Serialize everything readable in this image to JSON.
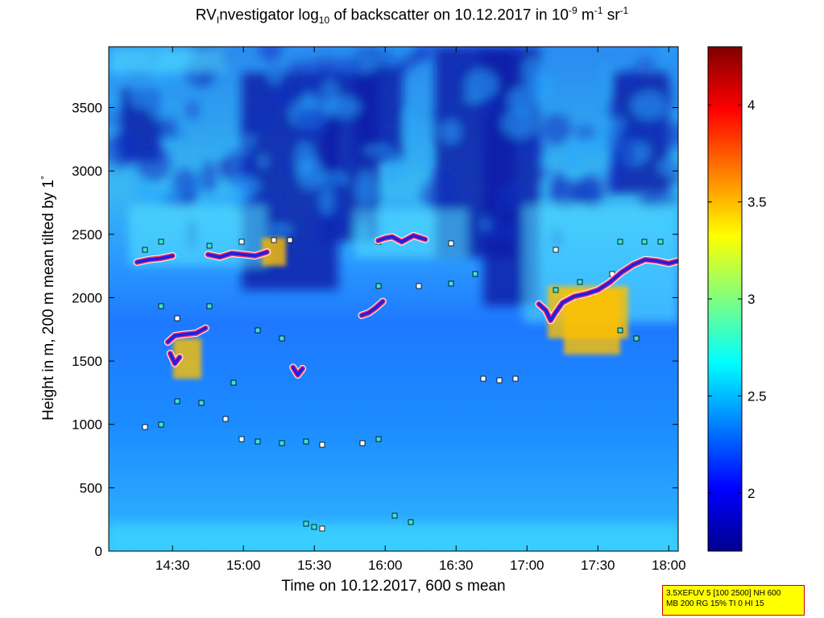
{
  "title": {
    "part1": "RV",
    "part1_sub": "I",
    "part2": "nvestigator log",
    "part2_sub": "10",
    "part3": " of backscatter on 10.12.2017 in 10",
    "unit_exp1": "-9",
    "unit_mid": " m",
    "unit_exp2": "-1",
    "unit_sr": " sr",
    "unit_exp3": "-1"
  },
  "ylabel": {
    "text": "Height in m, 200 m mean tilted by 1",
    "deg": "°"
  },
  "xlabel": "Time on 10.12.2017, 600 s mean",
  "info": {
    "line1": "3.5XEFUV 5 [100 2500] NH 600",
    "line2": "MB 200 RG 15% TI 0 HI 15"
  },
  "chart_data": {
    "type": "heatmap",
    "title": "RVInvestigator log10 of backscatter on 10.12.2017 in 10^-9 m^-1 sr^-1",
    "xlabel": "Time on 10.12.2017, 600 s mean",
    "ylabel": "Height in m, 200 m mean tilted by 1°",
    "x_range": [
      "14:03",
      "18:04"
    ],
    "y_range": [
      0,
      3980
    ],
    "x_ticks": [
      "14:30",
      "15:00",
      "15:30",
      "16:00",
      "16:30",
      "17:00",
      "17:30",
      "18:00"
    ],
    "x_tick_minutes": [
      870,
      900,
      930,
      960,
      990,
      1020,
      1050,
      1080
    ],
    "x_min_minutes": 843,
    "x_max_minutes": 1084,
    "y_ticks": [
      0,
      500,
      1000,
      1500,
      2000,
      2500,
      3000,
      3500
    ],
    "colorbar": {
      "min": 1.7,
      "max": 4.3,
      "ticks": [
        2,
        2.5,
        3,
        3.5,
        4
      ],
      "colormap": "jet"
    },
    "cloud_base_tracks": [
      {
        "time": [
          "14:15",
          "14:20",
          "14:25",
          "14:30"
        ],
        "height": [
          2280,
          2300,
          2310,
          2330
        ]
      },
      {
        "time": [
          "14:45",
          "14:50",
          "14:55",
          "15:00",
          "15:05",
          "15:10"
        ],
        "height": [
          2340,
          2320,
          2350,
          2340,
          2330,
          2360
        ]
      },
      {
        "time": [
          "14:28",
          "14:31",
          "14:35",
          "14:40",
          "14:44"
        ],
        "height": [
          1650,
          1700,
          1710,
          1720,
          1760
        ]
      },
      {
        "time": [
          "14:29",
          "14:31",
          "14:33"
        ],
        "height": [
          1560,
          1480,
          1530
        ]
      },
      {
        "time": [
          "15:21",
          "15:23",
          "15:25"
        ],
        "height": [
          1450,
          1390,
          1440
        ]
      },
      {
        "time": [
          "15:50",
          "15:53",
          "15:56",
          "15:59"
        ],
        "height": [
          1860,
          1880,
          1920,
          1970
        ]
      },
      {
        "time": [
          "15:57",
          "16:00",
          "16:03",
          "16:07",
          "16:12",
          "16:17"
        ],
        "height": [
          2450,
          2470,
          2480,
          2440,
          2490,
          2460
        ]
      },
      {
        "time": [
          "17:05",
          "17:08",
          "17:10",
          "17:12",
          "17:15",
          "17:20",
          "17:25",
          "17:30",
          "17:35",
          "17:40",
          "17:45",
          "17:50",
          "17:55",
          "18:00",
          "18:04"
        ],
        "height": [
          1950,
          1900,
          1820,
          1880,
          1960,
          2010,
          2030,
          2060,
          2120,
          2200,
          2260,
          2300,
          2290,
          2270,
          2290
        ]
      }
    ],
    "colors": {
      "background": "#0000b0",
      "cloud_base": "#2020e0",
      "cloud_base_ring": "#ff3060"
    }
  }
}
